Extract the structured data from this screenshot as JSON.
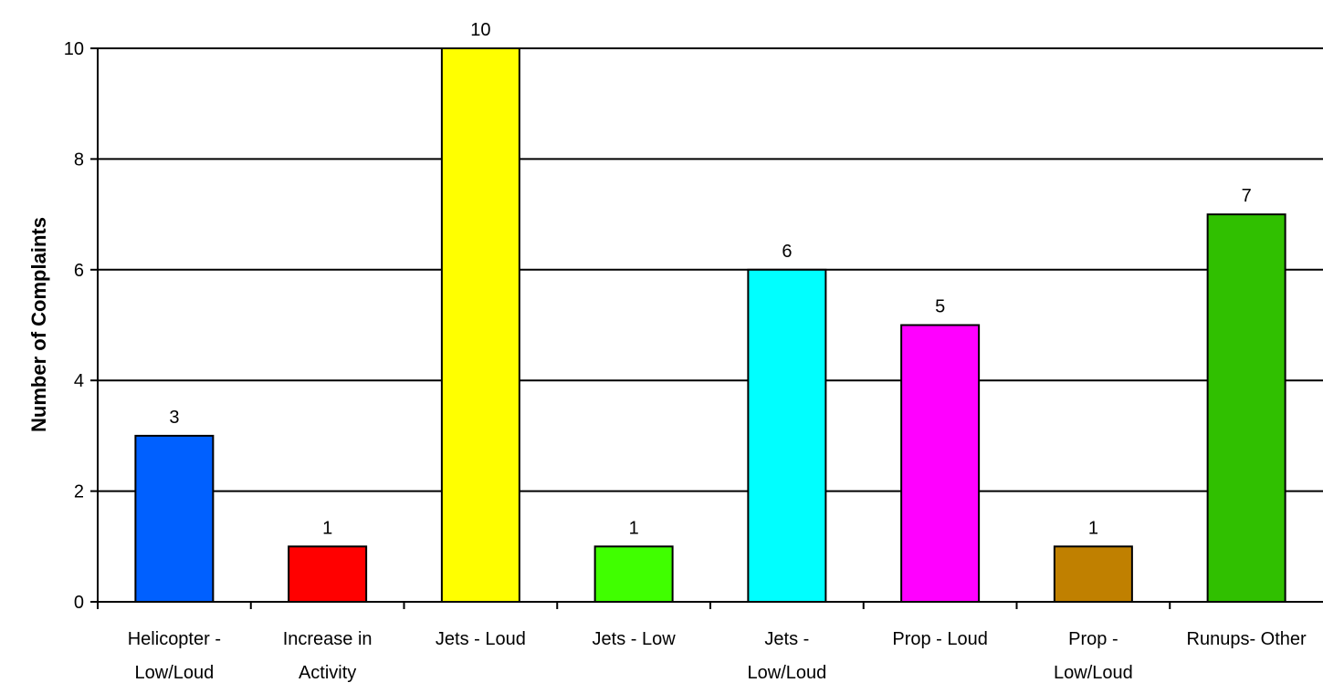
{
  "chart_data": {
    "type": "bar",
    "title": "",
    "xlabel": "",
    "ylabel": "Number of Complaints",
    "ylim": [
      0,
      10
    ],
    "yticks": [
      0,
      2,
      4,
      6,
      8,
      10
    ],
    "grid": true,
    "legend": "none",
    "categories": [
      [
        "Helicopter -",
        "Low/Loud"
      ],
      [
        "Increase in",
        "Activity"
      ],
      [
        "Jets - Loud"
      ],
      [
        "Jets - Low"
      ],
      [
        "Jets -",
        "Low/Loud"
      ],
      [
        "Prop - Loud"
      ],
      [
        "Prop -",
        "Low/Loud"
      ],
      [
        "Runups- Other"
      ]
    ],
    "values": [
      3,
      1,
      10,
      1,
      6,
      5,
      1,
      7
    ],
    "colors": [
      "#0060ff",
      "#ff0000",
      "#ffff00",
      "#40ff00",
      "#00ffff",
      "#ff00ff",
      "#c08000",
      "#30c000"
    ]
  }
}
